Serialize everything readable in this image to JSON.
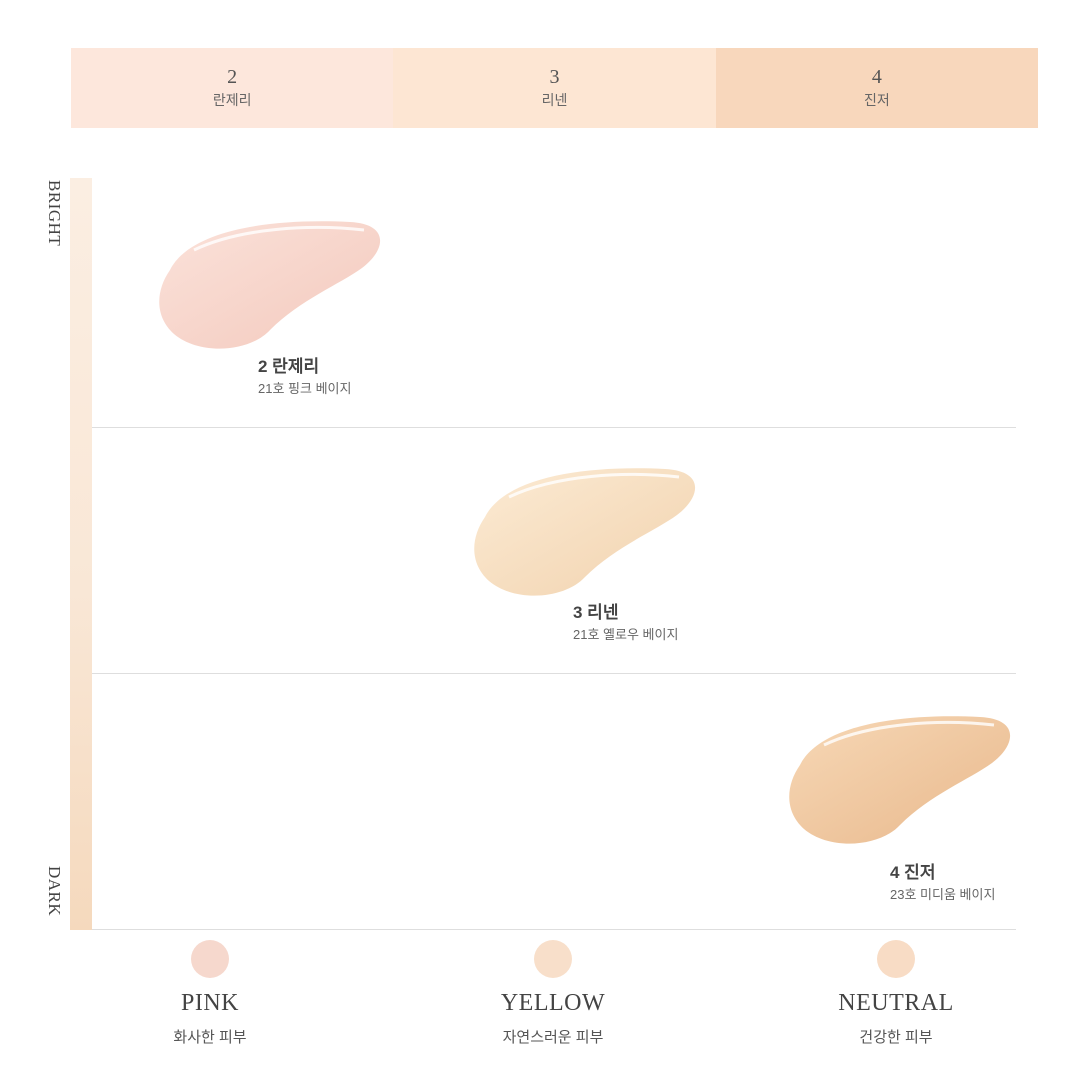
{
  "header": {
    "columns": [
      {
        "number": "2",
        "name": "란제리"
      },
      {
        "number": "3",
        "name": "리넨"
      },
      {
        "number": "4",
        "name": "진저"
      }
    ]
  },
  "axis": {
    "top_label": "BRIGHT",
    "bottom_label": "DARK"
  },
  "products": [
    {
      "name": "2 란제리",
      "desc": "21호 핑크 베이지",
      "color": "#f6d3c9"
    },
    {
      "name": "3 리넨",
      "desc": "21호 옐로우 베이지",
      "color": "#f8dfc0"
    },
    {
      "name": "4 진저",
      "desc": "23호 미디움 베이지",
      "color": "#f0c89f"
    }
  ],
  "tones": [
    {
      "label": "PINK",
      "desc": "화사한 피부",
      "color": "#f6d8cd"
    },
    {
      "label": "YELLOW",
      "desc": "자연스러운 피부",
      "color": "#f8dfca"
    },
    {
      "label": "NEUTRAL",
      "desc": "건강한 피부",
      "color": "#f8dcc5"
    }
  ]
}
